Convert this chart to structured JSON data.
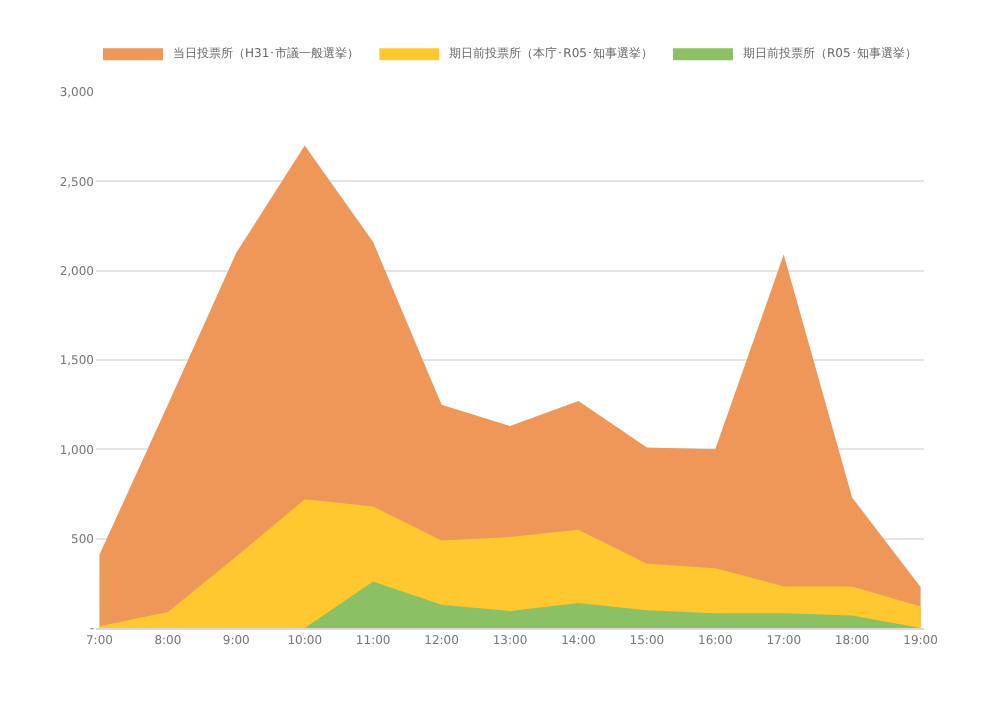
{
  "chart_data": {
    "type": "area",
    "categories": [
      "7:00",
      "8:00",
      "9:00",
      "10:00",
      "11:00",
      "12:00",
      "13:00",
      "14:00",
      "15:00",
      "16:00",
      "17:00",
      "18:00",
      "19:00"
    ],
    "series": [
      {
        "name": "当日投票所（H31･市議一般選挙）",
        "color": "#ef9659",
        "values": [
          410,
          1250,
          2100,
          2700,
          2160,
          1250,
          1130,
          1270,
          1010,
          1000,
          2090,
          730,
          230
        ]
      },
      {
        "name": "期日前投票所（本庁･R05･知事選挙）",
        "color": "#ffc830",
        "values": [
          10,
          90,
          400,
          720,
          680,
          490,
          510,
          550,
          360,
          335,
          233,
          232,
          120
        ]
      },
      {
        "name": "期日前投票所（R05･知事選挙）",
        "color": "#8bc064",
        "values": [
          null,
          null,
          null,
          0,
          260,
          130,
          95,
          140,
          100,
          83,
          83,
          70,
          0
        ]
      }
    ],
    "ylim": [
      0,
      3000
    ],
    "yticks": [
      {
        "value": 0,
        "label": "-"
      },
      {
        "value": 500,
        "label": "500"
      },
      {
        "value": 1000,
        "label": "1,000"
      },
      {
        "value": 1500,
        "label": "1,500"
      },
      {
        "value": 2000,
        "label": "2,000"
      },
      {
        "value": 2500,
        "label": "2,500"
      },
      {
        "value": 3000,
        "label": "3,000"
      }
    ],
    "grid": "y",
    "legend": "top"
  }
}
